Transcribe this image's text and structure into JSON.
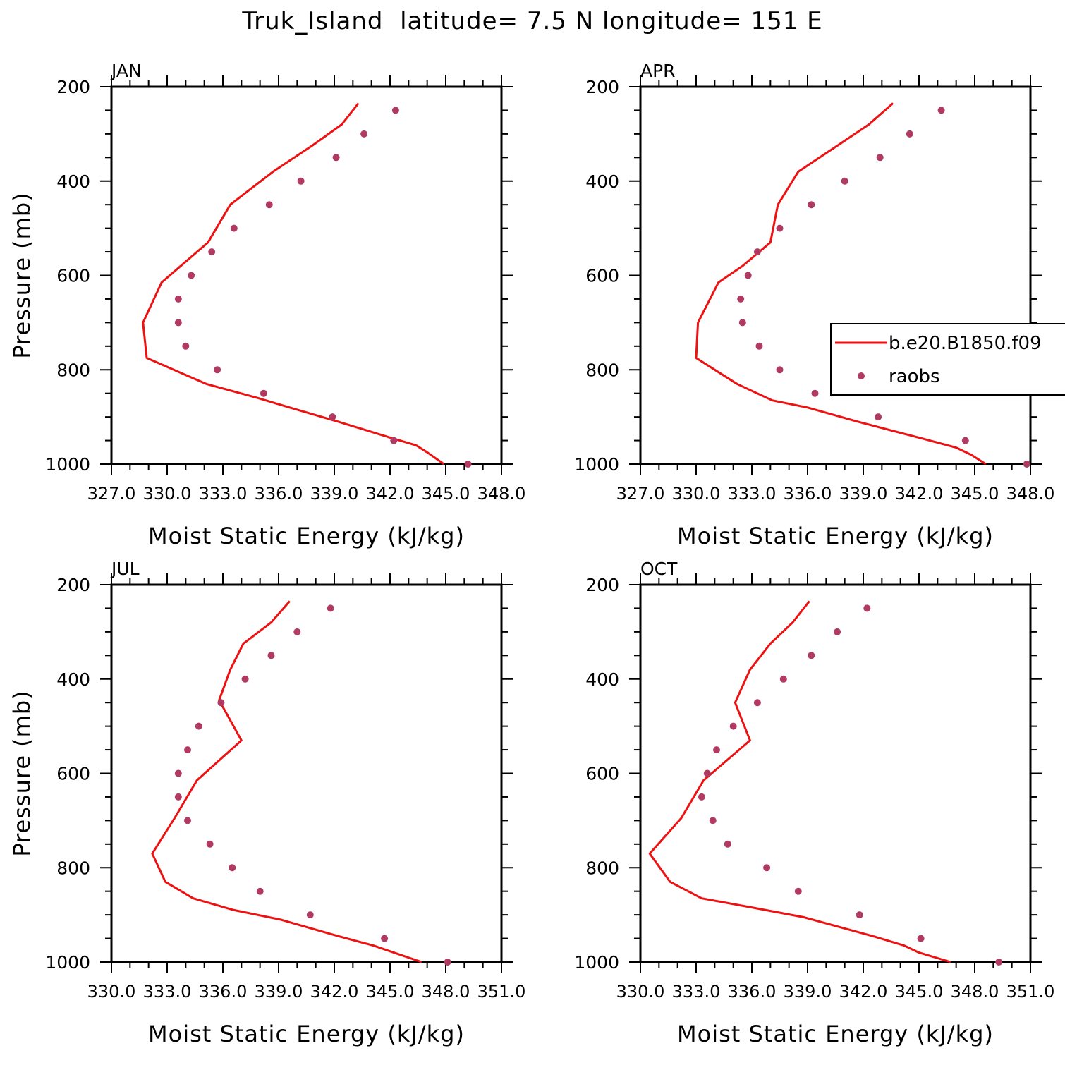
{
  "title": "Truk_Island  latitude= 7.5 N longitude= 151 E",
  "colors": {
    "model": "#ee1111",
    "obs": "#b03a62",
    "axis": "#000000"
  },
  "legend": {
    "model": "b.e20.B1850.f09",
    "obs": "raobs"
  },
  "chart_data": [
    {
      "type": "line",
      "panel": "JAN",
      "xlabel": "Moist Static Energy (kJ/kg)",
      "ylabel": "Pressure (mb)",
      "xlim": [
        327,
        348
      ],
      "ylim": [
        1000,
        200
      ],
      "xtick_labels": [
        "327.0",
        "330.0",
        "333.0",
        "336.0",
        "339.0",
        "342.0",
        "345.0",
        "348.0"
      ],
      "ytick_labels": [
        "200",
        "400",
        "600",
        "800",
        "1000"
      ],
      "series": [
        {
          "name": "b.e20.B1850.f09",
          "style": "line",
          "points": [
            [
              344.9,
              1000
            ],
            [
              344.0,
              975
            ],
            [
              343.4,
              960
            ],
            [
              342.1,
              945
            ],
            [
              339.2,
              910
            ],
            [
              336.6,
              880
            ],
            [
              334.9,
              860
            ],
            [
              332.1,
              830
            ],
            [
              328.9,
              775
            ],
            [
              328.7,
              700
            ],
            [
              329.7,
              615
            ],
            [
              332.2,
              530
            ],
            [
              333.4,
              450
            ],
            [
              335.7,
              380
            ],
            [
              337.8,
              325
            ],
            [
              339.4,
              280
            ],
            [
              340.3,
              235
            ]
          ]
        },
        {
          "name": "raobs",
          "style": "markers",
          "points": [
            [
              346.2,
              1000
            ],
            [
              342.2,
              950
            ],
            [
              338.9,
              900
            ],
            [
              335.2,
              850
            ],
            [
              332.7,
              800
            ],
            [
              331.0,
              750
            ],
            [
              330.6,
              700
            ],
            [
              330.6,
              650
            ],
            [
              331.3,
              600
            ],
            [
              332.4,
              550
            ],
            [
              333.6,
              500
            ],
            [
              335.5,
              450
            ],
            [
              337.2,
              400
            ],
            [
              339.1,
              350
            ],
            [
              340.6,
              300
            ],
            [
              342.3,
              250
            ]
          ]
        }
      ]
    },
    {
      "type": "line",
      "panel": "APR",
      "xlabel": "Moist Static Energy (kJ/kg)",
      "ylabel": "",
      "xlim": [
        327,
        348
      ],
      "ylim": [
        1000,
        200
      ],
      "xtick_labels": [
        "327.0",
        "330.0",
        "333.0",
        "336.0",
        "339.0",
        "342.0",
        "345.0",
        "348.0"
      ],
      "ytick_labels": [
        "200",
        "400",
        "600",
        "800",
        "1000"
      ],
      "series": [
        {
          "name": "b.e20.B1850.f09",
          "style": "line",
          "points": [
            [
              345.6,
              1000
            ],
            [
              344.8,
              980
            ],
            [
              344.0,
              965
            ],
            [
              342.1,
              945
            ],
            [
              338.7,
              910
            ],
            [
              336.0,
              880
            ],
            [
              334.1,
              865
            ],
            [
              332.2,
              830
            ],
            [
              330.0,
              775
            ],
            [
              330.1,
              700
            ],
            [
              331.2,
              615
            ],
            [
              332.5,
              580
            ],
            [
              333.1,
              560
            ],
            [
              334.0,
              530
            ],
            [
              334.4,
              450
            ],
            [
              335.5,
              380
            ],
            [
              337.6,
              325
            ],
            [
              339.3,
              280
            ],
            [
              340.6,
              235
            ]
          ]
        },
        {
          "name": "raobs",
          "style": "markers",
          "points": [
            [
              347.8,
              1000
            ],
            [
              344.5,
              950
            ],
            [
              339.8,
              900
            ],
            [
              336.4,
              850
            ],
            [
              334.5,
              800
            ],
            [
              333.4,
              750
            ],
            [
              332.5,
              700
            ],
            [
              332.4,
              650
            ],
            [
              332.8,
              600
            ],
            [
              333.3,
              550
            ],
            [
              334.5,
              500
            ],
            [
              336.2,
              450
            ],
            [
              338.0,
              400
            ],
            [
              339.9,
              350
            ],
            [
              341.5,
              300
            ],
            [
              343.2,
              250
            ]
          ]
        }
      ]
    },
    {
      "type": "line",
      "panel": "JUL",
      "xlabel": "Moist Static Energy (kJ/kg)",
      "ylabel": "Pressure (mb)",
      "xlim": [
        330,
        351
      ],
      "ylim": [
        1000,
        200
      ],
      "xtick_labels": [
        "330.0",
        "333.0",
        "336.0",
        "339.0",
        "342.0",
        "345.0",
        "348.0",
        "351.0"
      ],
      "ytick_labels": [
        "200",
        "400",
        "600",
        "800",
        "1000"
      ],
      "series": [
        {
          "name": "b.e20.B1850.f09",
          "style": "line",
          "points": [
            [
              346.7,
              1000
            ],
            [
              345.2,
              980
            ],
            [
              344.1,
              965
            ],
            [
              342.2,
              945
            ],
            [
              339.1,
              910
            ],
            [
              336.6,
              890
            ],
            [
              334.4,
              865
            ],
            [
              332.9,
              830
            ],
            [
              332.2,
              770
            ],
            [
              333.4,
              695
            ],
            [
              334.6,
              615
            ],
            [
              337.0,
              530
            ],
            [
              335.8,
              445
            ],
            [
              336.4,
              380
            ],
            [
              337.1,
              325
            ],
            [
              338.6,
              280
            ],
            [
              339.6,
              235
            ]
          ]
        },
        {
          "name": "raobs",
          "style": "markers",
          "points": [
            [
              348.1,
              1000
            ],
            [
              344.7,
              950
            ],
            [
              340.7,
              900
            ],
            [
              338.0,
              850
            ],
            [
              336.5,
              800
            ],
            [
              335.3,
              750
            ],
            [
              334.1,
              700
            ],
            [
              333.6,
              650
            ],
            [
              333.6,
              600
            ],
            [
              334.1,
              550
            ],
            [
              334.7,
              500
            ],
            [
              335.9,
              450
            ],
            [
              337.2,
              400
            ],
            [
              338.6,
              350
            ],
            [
              340.0,
              300
            ],
            [
              341.8,
              250
            ]
          ]
        }
      ]
    },
    {
      "type": "line",
      "panel": "OCT",
      "xlabel": "Moist Static Energy (kJ/kg)",
      "ylabel": "",
      "xlim": [
        330,
        351
      ],
      "ylim": [
        1000,
        200
      ],
      "xtick_labels": [
        "330.0",
        "333.0",
        "336.0",
        "339.0",
        "342.0",
        "345.0",
        "348.0",
        "351.0"
      ],
      "ytick_labels": [
        "200",
        "400",
        "600",
        "800",
        "1000"
      ],
      "series": [
        {
          "name": "b.e20.B1850.f09",
          "style": "line",
          "points": [
            [
              346.7,
              1000
            ],
            [
              345.0,
              980
            ],
            [
              344.2,
              965
            ],
            [
              342.5,
              945
            ],
            [
              338.8,
              905
            ],
            [
              336.1,
              885
            ],
            [
              333.3,
              865
            ],
            [
              331.6,
              830
            ],
            [
              330.5,
              770
            ],
            [
              332.2,
              695
            ],
            [
              333.4,
              615
            ],
            [
              335.9,
              530
            ],
            [
              335.1,
              450
            ],
            [
              335.9,
              380
            ],
            [
              337.0,
              325
            ],
            [
              338.2,
              280
            ],
            [
              339.1,
              235
            ]
          ]
        },
        {
          "name": "raobs",
          "style": "markers",
          "points": [
            [
              349.3,
              1000
            ],
            [
              345.1,
              950
            ],
            [
              341.8,
              900
            ],
            [
              338.5,
              850
            ],
            [
              336.8,
              800
            ],
            [
              334.7,
              750
            ],
            [
              333.9,
              700
            ],
            [
              333.3,
              650
            ],
            [
              333.6,
              600
            ],
            [
              334.1,
              550
            ],
            [
              335.0,
              500
            ],
            [
              336.3,
              450
            ],
            [
              337.7,
              400
            ],
            [
              339.2,
              350
            ],
            [
              340.6,
              300
            ],
            [
              342.2,
              250
            ]
          ]
        }
      ]
    }
  ]
}
